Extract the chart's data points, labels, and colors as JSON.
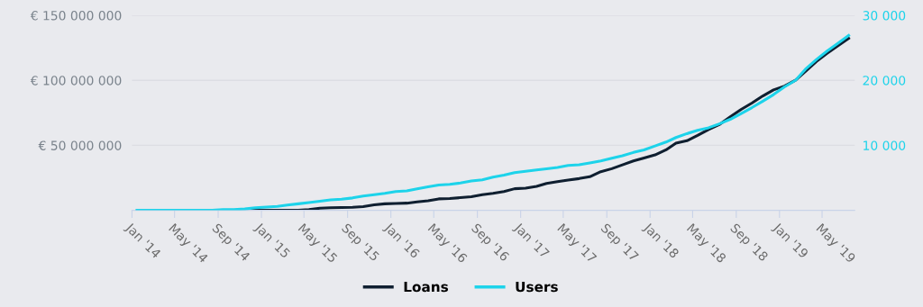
{
  "chart_data": {
    "type": "line",
    "x": [
      "2014-01-15",
      "2014-02-15",
      "2014-03-15",
      "2014-04-15",
      "2014-05-15",
      "2014-06-15",
      "2014-07-15",
      "2014-08-15",
      "2014-09-15",
      "2014-10-15",
      "2014-11-15",
      "2014-12-15",
      "2015-01-15",
      "2015-02-15",
      "2015-03-15",
      "2015-04-15",
      "2015-05-15",
      "2015-06-15",
      "2015-07-15",
      "2015-08-15",
      "2015-09-15",
      "2015-10-15",
      "2015-11-15",
      "2015-12-15",
      "2016-01-15",
      "2016-02-15",
      "2016-03-15",
      "2016-04-15",
      "2016-05-15",
      "2016-06-15",
      "2016-07-15",
      "2016-08-15",
      "2016-09-15",
      "2016-10-15",
      "2016-11-15",
      "2016-12-15",
      "2017-01-15",
      "2017-02-15",
      "2017-03-15",
      "2017-04-15",
      "2017-05-15",
      "2017-06-15",
      "2017-07-15",
      "2017-08-15",
      "2017-09-15",
      "2017-10-15",
      "2017-11-15",
      "2017-12-15",
      "2018-01-15",
      "2018-02-15",
      "2018-03-15",
      "2018-04-15",
      "2018-05-15",
      "2018-06-15",
      "2018-07-15",
      "2018-08-15",
      "2018-09-15",
      "2018-10-15",
      "2018-11-15",
      "2018-12-15",
      "2019-01-15",
      "2019-02-15",
      "2019-03-15",
      "2019-04-15",
      "2019-05-15",
      "2019-06-15",
      "2019-07-15"
    ],
    "series": [
      {
        "name": "Loans",
        "color": "#0f1f30",
        "values": [
          null,
          null,
          null,
          null,
          null,
          null,
          null,
          null,
          null,
          null,
          0,
          0,
          0,
          0,
          0,
          0,
          500000,
          1600000,
          2000000,
          2200000,
          2300000,
          2800000,
          4200000,
          5000000,
          5300000,
          5500000,
          6500000,
          7400000,
          8800000,
          9000000,
          9700000,
          10400000,
          12000000,
          13100000,
          14500000,
          16600000,
          17000000,
          18400000,
          20700000,
          22100000,
          23300000,
          24400000,
          25800000,
          29700000,
          32000000,
          35000000,
          38000000,
          40300000,
          42600000,
          46500000,
          51600000,
          53500000,
          57600000,
          62200000,
          65900000,
          71900000,
          77600000,
          82500000,
          88000000,
          92600000,
          95600000,
          100000000,
          106900000,
          114500000,
          120700000,
          126700000,
          132300000
        ]
      },
      {
        "name": "Users",
        "color": "#1dd3ea",
        "axis": "y2",
        "values": [
          0,
          0,
          0,
          0,
          0,
          0,
          0,
          0,
          100,
          100,
          200,
          400,
          500,
          600,
          800,
          1000,
          1200,
          1400,
          1600,
          1700,
          1900,
          2200,
          2400,
          2600,
          2900,
          3000,
          3300,
          3600,
          3900,
          4000,
          4200,
          4500,
          4700,
          5100,
          5400,
          5800,
          6000,
          6200,
          6400,
          6600,
          6900,
          7000,
          7300,
          7600,
          8000,
          8400,
          8900,
          9300,
          9900,
          10500,
          11200,
          11800,
          12300,
          12700,
          13300,
          14000,
          14900,
          15800,
          16800,
          17800,
          19000,
          20000,
          21700,
          23200,
          24500,
          25700,
          26900
        ]
      }
    ],
    "xlim": [
      "2014-01-01",
      "2019-08-01"
    ],
    "xticks": [
      {
        "value": "2014-01-01",
        "label": "Jan '14"
      },
      {
        "value": "2014-05-01",
        "label": "May '14"
      },
      {
        "value": "2014-09-01",
        "label": "Sep '14"
      },
      {
        "value": "2015-01-01",
        "label": "Jan '15"
      },
      {
        "value": "2015-05-01",
        "label": "May '15"
      },
      {
        "value": "2015-09-01",
        "label": "Sep '15"
      },
      {
        "value": "2016-01-01",
        "label": "Jan '16"
      },
      {
        "value": "2016-05-01",
        "label": "May '16"
      },
      {
        "value": "2016-09-01",
        "label": "Sep '16"
      },
      {
        "value": "2017-01-01",
        "label": "Jan '17"
      },
      {
        "value": "2017-05-01",
        "label": "May '17"
      },
      {
        "value": "2017-09-01",
        "label": "Sep '17"
      },
      {
        "value": "2018-01-01",
        "label": "Jan '18"
      },
      {
        "value": "2018-05-01",
        "label": "May '18"
      },
      {
        "value": "2018-09-01",
        "label": "Sep '18"
      },
      {
        "value": "2019-01-01",
        "label": "Jan '19"
      },
      {
        "value": "2019-05-01",
        "label": "May '19"
      }
    ],
    "ylim": [
      0,
      150000000
    ],
    "yticks": [
      {
        "value": 50000000,
        "label": "€ 50 000 000"
      },
      {
        "value": 100000000,
        "label": "€ 100 000 000"
      },
      {
        "value": 150000000,
        "label": "€ 150 000 000"
      }
    ],
    "y2lim": [
      0,
      30000
    ],
    "y2ticks": [
      {
        "value": 10000,
        "label": "10 000"
      },
      {
        "value": 20000,
        "label": "20 000"
      },
      {
        "value": 30000,
        "label": "30 000"
      }
    ],
    "grid": "y",
    "legend": "bottom",
    "marker": "none",
    "line_style": "solid"
  }
}
